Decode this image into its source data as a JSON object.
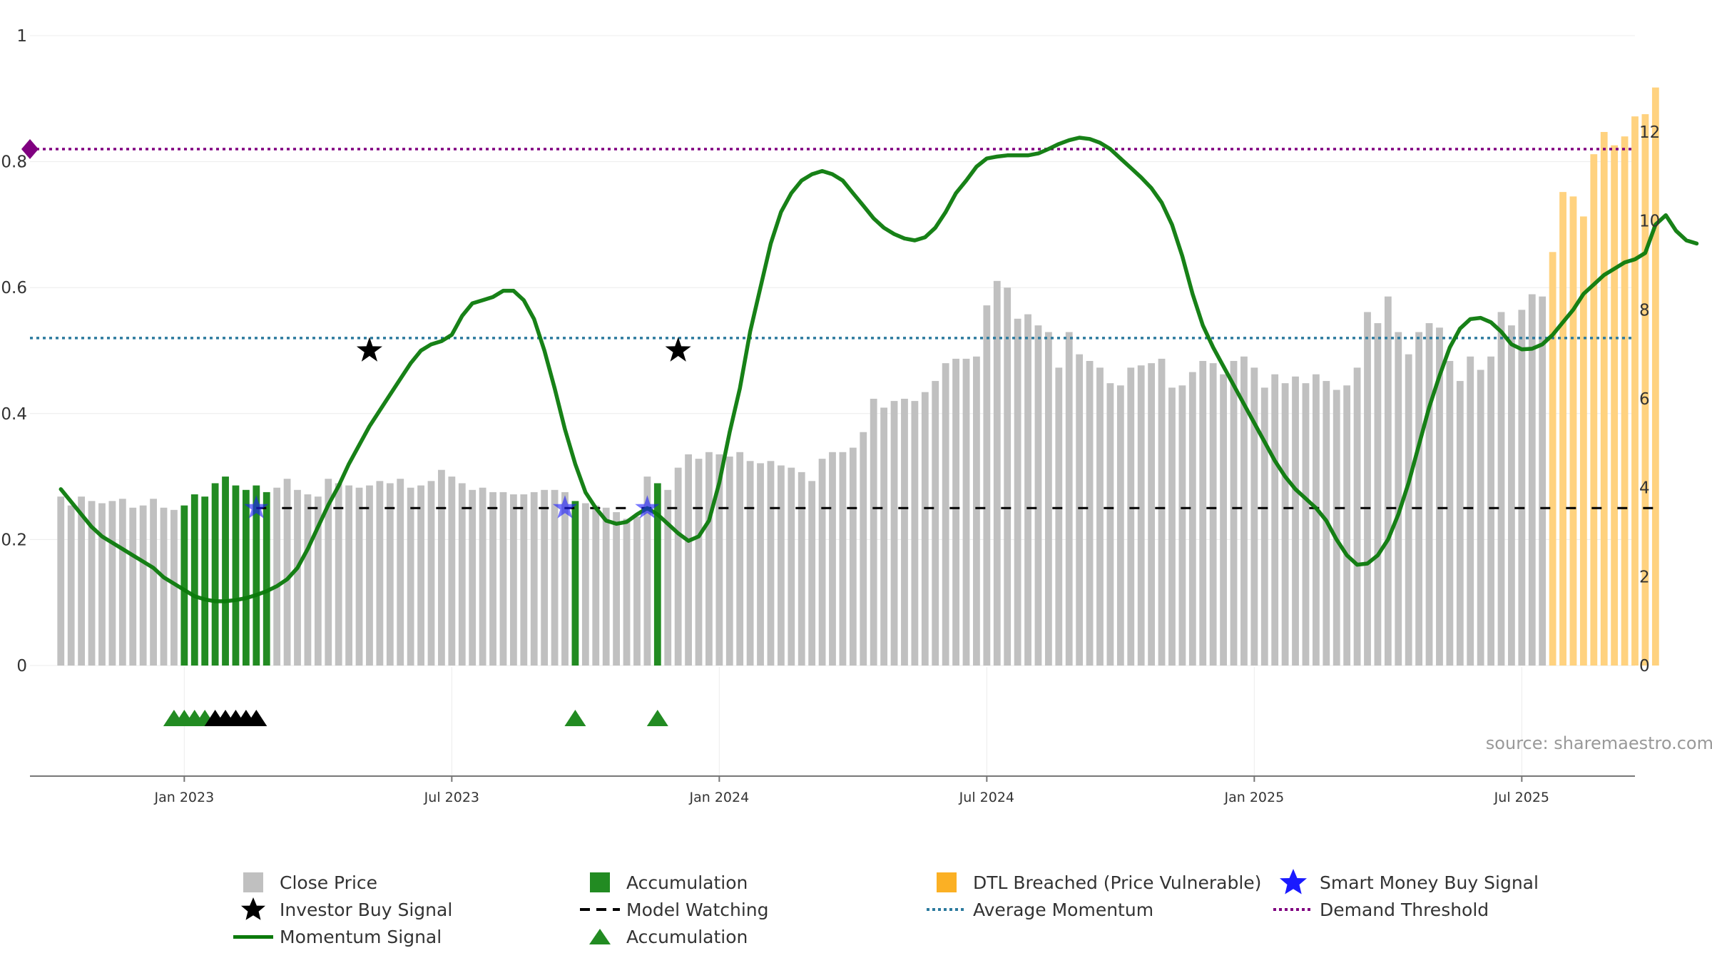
{
  "chart_data": {
    "type": "bar",
    "source": "source: sharemaestro.com",
    "left_axis": {
      "ticks": [
        0,
        0.2,
        0.4,
        0.6,
        0.8,
        1
      ],
      "range": [
        0,
        1
      ]
    },
    "right_axis": {
      "ticks": [
        0,
        2,
        4,
        6,
        8,
        10,
        12
      ],
      "range": [
        0,
        13.6
      ]
    },
    "x_axis": {
      "ticks": [
        {
          "label": "Jan 2023",
          "week": 12
        },
        {
          "label": "Jul 2023",
          "week": 38
        },
        {
          "label": "Jan 2024",
          "week": 64
        },
        {
          "label": "Jul 2024",
          "week": 90
        },
        {
          "label": "Jan 2025",
          "week": 116
        },
        {
          "label": "Jul 2025",
          "week": 142
        }
      ],
      "range": [
        -3,
        153
      ]
    },
    "close_price": [
      3.8,
      3.6,
      3.8,
      3.7,
      3.65,
      3.7,
      3.75,
      3.55,
      3.6,
      3.75,
      3.55,
      3.5,
      3.6,
      3.85,
      3.8,
      4.1,
      4.25,
      4.05,
      3.95,
      4.05,
      3.9,
      4.0,
      4.2,
      3.95,
      3.85,
      3.8,
      4.2,
      4.1,
      4.05,
      4.0,
      4.05,
      4.15,
      4.1,
      4.2,
      4.0,
      4.05,
      4.15,
      4.4,
      4.25,
      4.1,
      3.95,
      4.0,
      3.9,
      3.9,
      3.85,
      3.85,
      3.9,
      3.95,
      3.95,
      3.9,
      3.7,
      3.65,
      3.6,
      3.55,
      3.45,
      3.3,
      3.35,
      4.25,
      4.1,
      3.95,
      4.45,
      4.75,
      4.65,
      4.8,
      4.75,
      4.7,
      4.8,
      4.6,
      4.55,
      4.6,
      4.5,
      4.45,
      4.35,
      4.15,
      4.65,
      4.8,
      4.8,
      4.9,
      5.25,
      6.0,
      5.8,
      5.95,
      6.0,
      5.95,
      6.15,
      6.4,
      6.8,
      6.9,
      6.9,
      6.95,
      8.1,
      8.65,
      8.5,
      7.8,
      7.9,
      7.65,
      7.5,
      6.7,
      7.5,
      7.0,
      6.85,
      6.7,
      6.35,
      6.3,
      6.7,
      6.75,
      6.8,
      6.9,
      6.25,
      6.3,
      6.6,
      6.85,
      6.8,
      6.55,
      6.85,
      6.95,
      6.7,
      6.25,
      6.55,
      6.35,
      6.5,
      6.35,
      6.55,
      6.4,
      6.2,
      6.3,
      6.7,
      7.95,
      7.7,
      8.3,
      7.5,
      7.0,
      7.5,
      7.7,
      7.6,
      6.85,
      6.4,
      6.95,
      6.65,
      6.95,
      7.95,
      7.65,
      8.0,
      8.35,
      8.3,
      9.3,
      10.65,
      10.55,
      10.1,
      11.5,
      12.0,
      11.7,
      11.9,
      12.35,
      12.4,
      13.0
    ],
    "accumulation_bar_weeks": [
      12,
      13,
      14,
      15,
      16,
      17,
      18,
      19,
      20,
      50,
      58
    ],
    "dtl_breached_from_week": 145,
    "momentum_signal": [
      0.28,
      0.26,
      0.24,
      0.22,
      0.205,
      0.195,
      0.185,
      0.175,
      0.165,
      0.155,
      0.14,
      0.13,
      0.12,
      0.11,
      0.105,
      0.102,
      0.102,
      0.104,
      0.107,
      0.112,
      0.118,
      0.126,
      0.137,
      0.155,
      0.185,
      0.22,
      0.255,
      0.285,
      0.32,
      0.35,
      0.38,
      0.405,
      0.43,
      0.455,
      0.48,
      0.5,
      0.51,
      0.515,
      0.525,
      0.555,
      0.575,
      0.58,
      0.585,
      0.595,
      0.595,
      0.58,
      0.55,
      0.5,
      0.44,
      0.375,
      0.32,
      0.275,
      0.25,
      0.23,
      0.225,
      0.228,
      0.24,
      0.25,
      0.24,
      0.225,
      0.21,
      0.198,
      0.205,
      0.23,
      0.29,
      0.37,
      0.44,
      0.53,
      0.6,
      0.67,
      0.72,
      0.75,
      0.77,
      0.78,
      0.785,
      0.78,
      0.77,
      0.75,
      0.73,
      0.71,
      0.695,
      0.685,
      0.678,
      0.675,
      0.68,
      0.695,
      0.72,
      0.75,
      0.77,
      0.792,
      0.805,
      0.808,
      0.81,
      0.81,
      0.81,
      0.813,
      0.82,
      0.828,
      0.834,
      0.838,
      0.836,
      0.83,
      0.82,
      0.805,
      0.79,
      0.775,
      0.758,
      0.735,
      0.7,
      0.65,
      0.59,
      0.54,
      0.505,
      0.475,
      0.445,
      0.415,
      0.385,
      0.355,
      0.325,
      0.3,
      0.28,
      0.265,
      0.25,
      0.23,
      0.2,
      0.175,
      0.16,
      0.162,
      0.175,
      0.2,
      0.24,
      0.29,
      0.35,
      0.41,
      0.46,
      0.505,
      0.535,
      0.55,
      0.552,
      0.545,
      0.53,
      0.51,
      0.502,
      0.503,
      0.51,
      0.525,
      0.545,
      0.565,
      0.59,
      0.605,
      0.62,
      0.63,
      0.64,
      0.645,
      0.655,
      0.7,
      0.715,
      0.69,
      0.675,
      0.67
    ],
    "investor_buy_signals": [
      {
        "week": 30,
        "value": 0.5
      },
      {
        "week": 60,
        "value": 0.5
      }
    ],
    "smart_money_buy_signals": [
      {
        "week": 19,
        "value": 0.25
      },
      {
        "week": 49,
        "value": 0.25
      },
      {
        "week": 57,
        "value": 0.25
      }
    ],
    "model_watching_level": 0.25,
    "average_momentum_level": 0.52,
    "demand_threshold_level": 0.82,
    "accumulation_triangles_green_weeks": [
      11,
      12,
      13,
      14,
      50,
      58
    ],
    "accumulation_triangles_black_weeks": [
      15,
      16,
      17,
      18,
      19
    ],
    "colors": {
      "close_price": "#c0c0c0",
      "accumulation": "#228b22",
      "dtl_breached": "#ffd27f",
      "momentum": "#0b7a0b",
      "average_momentum": "#2c7a9e",
      "demand_threshold": "#800080",
      "smart_money": "#1a1aff",
      "investor": "#000000",
      "model_watching": "#000000"
    }
  },
  "legend": {
    "close_price": "Close Price",
    "accumulation_bar": "Accumulation",
    "dtl_breached": "DTL Breached (Price Vulnerable)",
    "smart_money": "Smart Money Buy Signal",
    "investor_buy": "Investor Buy Signal",
    "model_watching": "Model Watching",
    "average_momentum": "Average Momentum",
    "demand_threshold": "Demand Threshold",
    "momentum_signal": "Momentum Signal",
    "accumulation_triangle": "Accumulation"
  }
}
